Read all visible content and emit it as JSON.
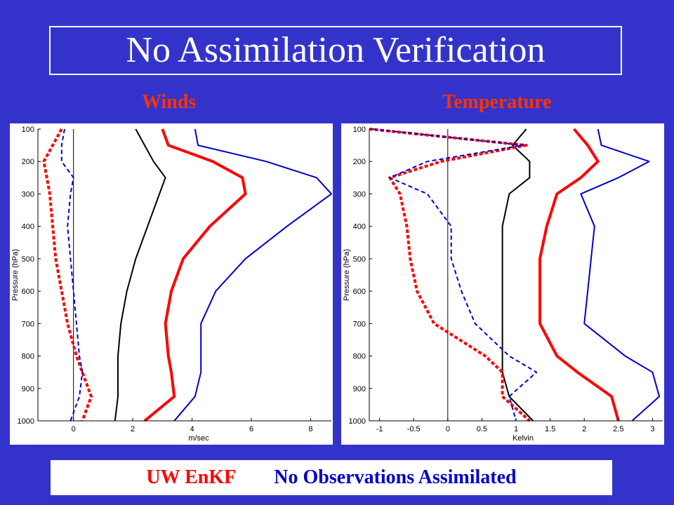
{
  "title": "No Assimilation Verification",
  "footer": {
    "label_red": "UW EnKF",
    "label_blue": "No Observations Assimilated"
  },
  "colors": {
    "background": "#3333cc",
    "panel_title": "#ff3300",
    "red_series": "#ff0000",
    "blue_series": "#0000cc",
    "black_series": "#000000"
  },
  "chart_data": [
    {
      "type": "line",
      "title": "Winds",
      "xlabel": "m/sec",
      "ylabel": "Pressure (hPa)",
      "xlim": [
        -1.2,
        8.7
      ],
      "ylim": [
        1000,
        100
      ],
      "xticks": [
        0,
        2,
        4,
        6,
        8
      ],
      "yticks": [
        100,
        200,
        300,
        400,
        500,
        600,
        700,
        800,
        900,
        1000
      ],
      "pressure": [
        100,
        150,
        200,
        250,
        300,
        400,
        500,
        600,
        700,
        800,
        850,
        925,
        1000
      ],
      "series": [
        {
          "color": "#000000",
          "style": "solid",
          "width": 2,
          "values": [
            2.1,
            2.4,
            2.7,
            3.1,
            2.9,
            2.5,
            2.1,
            1.8,
            1.6,
            1.5,
            1.5,
            1.5,
            1.4
          ]
        },
        {
          "color": "#ff0000",
          "style": "solid",
          "width": 4,
          "values": [
            3.0,
            3.2,
            4.7,
            5.7,
            5.8,
            4.6,
            3.7,
            3.3,
            3.1,
            3.2,
            3.3,
            3.4,
            2.4
          ]
        },
        {
          "color": "#0000cc",
          "style": "solid",
          "width": 2,
          "values": [
            4.1,
            4.2,
            6.5,
            8.2,
            8.7,
            7.2,
            5.8,
            4.8,
            4.3,
            4.3,
            4.3,
            4.1,
            3.4
          ]
        },
        {
          "color": "#ff0000",
          "style": "dashed",
          "width": 4,
          "values": [
            -0.4,
            -0.7,
            -1.0,
            -0.9,
            -0.8,
            -0.7,
            -0.6,
            -0.4,
            -0.2,
            0.1,
            0.3,
            0.6,
            0.3
          ]
        },
        {
          "color": "#0000cc",
          "style": "dashed",
          "width": 2,
          "values": [
            -0.3,
            -0.4,
            -0.4,
            0.0,
            -0.1,
            -0.2,
            -0.1,
            0.0,
            0.1,
            0.2,
            0.3,
            0.2,
            -0.1
          ]
        }
      ]
    },
    {
      "type": "line",
      "title": "Temperature",
      "xlabel": "Kelvin",
      "ylabel": "Pressure (hPa)",
      "xlim": [
        -1.15,
        3.15
      ],
      "ylim": [
        1000,
        100
      ],
      "xticks": [
        -1,
        -0.5,
        0,
        0.5,
        1,
        1.5,
        2,
        2.5,
        3
      ],
      "yticks": [
        100,
        200,
        300,
        400,
        500,
        600,
        700,
        800,
        900,
        1000
      ],
      "pressure": [
        100,
        150,
        200,
        250,
        300,
        400,
        500,
        600,
        700,
        800,
        850,
        925,
        1000
      ],
      "series": [
        {
          "color": "#000000",
          "style": "solid",
          "width": 2,
          "values": [
            1.15,
            0.95,
            1.2,
            1.2,
            0.9,
            0.8,
            0.8,
            0.8,
            0.8,
            0.8,
            0.8,
            0.9,
            1.25
          ]
        },
        {
          "color": "#ff0000",
          "style": "solid",
          "width": 4,
          "values": [
            1.85,
            2.05,
            2.2,
            1.95,
            1.6,
            1.45,
            1.35,
            1.35,
            1.35,
            1.6,
            1.9,
            2.4,
            2.5
          ]
        },
        {
          "color": "#0000cc",
          "style": "solid",
          "width": 2,
          "values": [
            2.2,
            2.25,
            2.95,
            2.5,
            1.95,
            2.15,
            2.1,
            2.05,
            2.0,
            2.6,
            3.0,
            3.1,
            2.7
          ]
        },
        {
          "color": "#ff0000",
          "style": "dashed",
          "width": 4,
          "values": [
            -1.15,
            1.15,
            -0.1,
            -0.85,
            -0.7,
            -0.6,
            -0.55,
            -0.45,
            -0.2,
            0.55,
            0.8,
            0.8,
            1.2
          ]
        },
        {
          "color": "#0000cc",
          "style": "dashed",
          "width": 2,
          "values": [
            -1.1,
            1.1,
            -0.3,
            -0.85,
            -0.3,
            0.05,
            0.05,
            0.2,
            0.4,
            0.9,
            1.3,
            0.9,
            1.0
          ]
        }
      ]
    }
  ]
}
